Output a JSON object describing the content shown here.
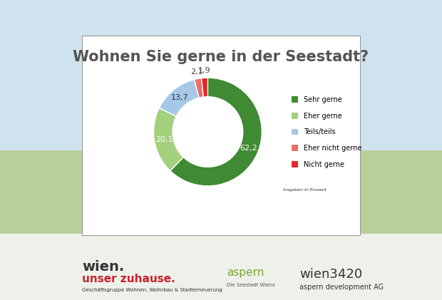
{
  "chart_data": {
    "type": "pie",
    "title": "Wohnen Sie gerne in der Seestadt?",
    "categories": [
      "Sehr gerne",
      "Eher gerne",
      "Teils/teils",
      "Eher nicht gerne",
      "Nicht gerne"
    ],
    "values": [
      62.2,
      20.1,
      13.7,
      2.1,
      1.9
    ],
    "value_labels": [
      "62,2",
      "20,1",
      "13,7",
      "2,1",
      "1,9"
    ],
    "colors": [
      "#3f8a33",
      "#a3d07c",
      "#a5c8e8",
      "#ea6f6a",
      "#e5262c"
    ],
    "data_labels": true,
    "legend": "right",
    "annotations": [
      "Angaben in Prozent",
      "wien.",
      "unser zuhause.",
      "Geschäftsgruppe Wohnen, Wohnbau & Stadterneuerung",
      "aspern",
      "Die Seestadt Wiens",
      "wien3420",
      "aspern development AG"
    ]
  }
}
